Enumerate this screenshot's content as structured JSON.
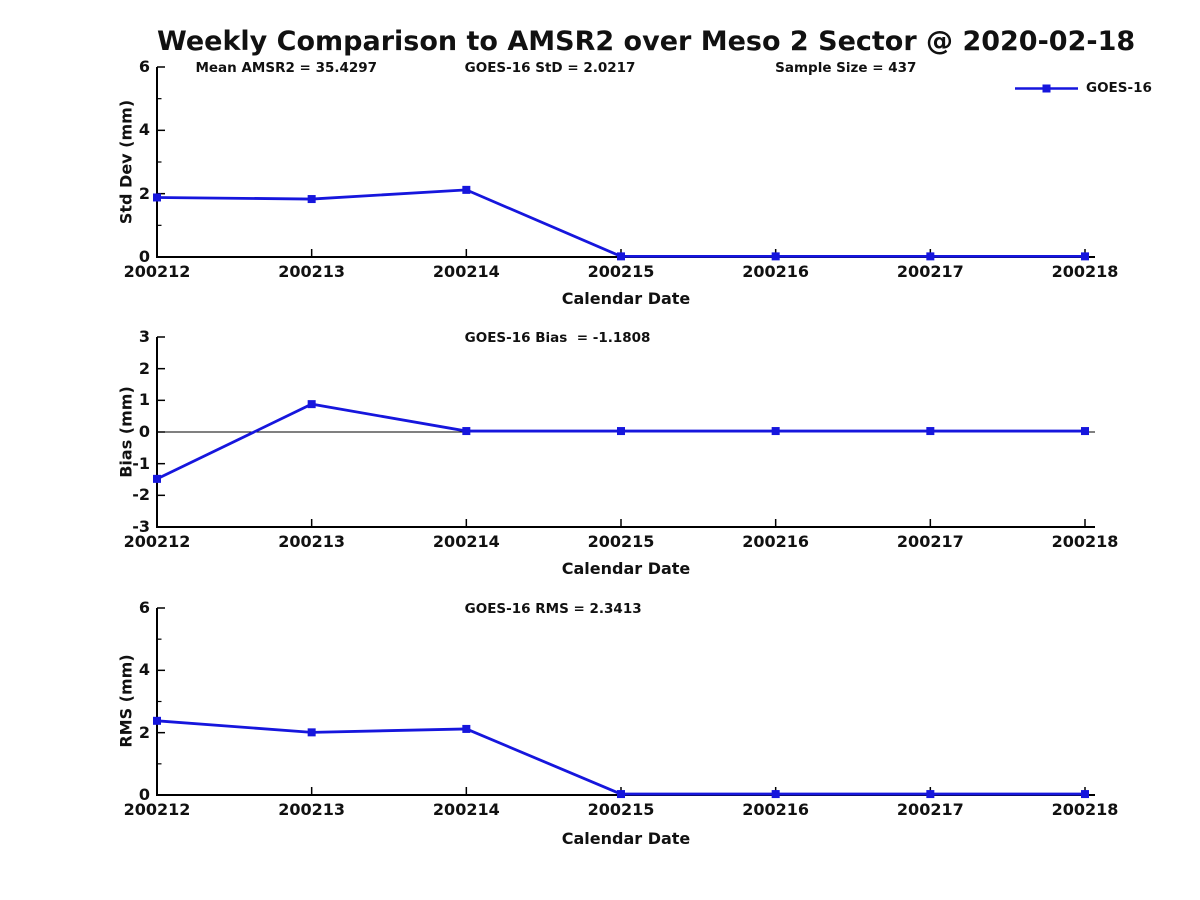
{
  "title": "Weekly Comparison to AMSR2 over Meso 2 Sector @ 2020-02-18",
  "legend": {
    "label": "GOES-16"
  },
  "colors": {
    "line": "#1616dd",
    "axis": "#000000",
    "text": "#111111",
    "background": "#ffffff"
  },
  "chart_data": [
    {
      "type": "line",
      "name": "std-dev",
      "ylabel": "Std Dev (mm)",
      "xlabel": "Calendar Date",
      "categories": [
        "200212",
        "200213",
        "200214",
        "200215",
        "200216",
        "200217",
        "200218"
      ],
      "series": [
        {
          "name": "GOES-16",
          "values": [
            1.88,
            1.83,
            2.12,
            0.02,
            0.02,
            0.02,
            0.02
          ]
        }
      ],
      "ylim": [
        0,
        6
      ],
      "yticks": [
        0,
        2,
        4,
        6
      ],
      "minor_yticks": [
        1,
        3,
        5
      ],
      "zero_line": false,
      "grid": false,
      "legend_position": "top-right-inside",
      "annotations": [
        {
          "text": "Mean AMSR2 = 35.4297",
          "fx": 0.041
        },
        {
          "text": "GOES-16 StD = 2.0217",
          "fx": 0.328
        },
        {
          "text": "Sample Size = 437",
          "fx": 0.659
        }
      ]
    },
    {
      "type": "line",
      "name": "bias",
      "ylabel": "Bias (mm)",
      "xlabel": "Calendar Date",
      "categories": [
        "200212",
        "200213",
        "200214",
        "200215",
        "200216",
        "200217",
        "200218"
      ],
      "series": [
        {
          "name": "GOES-16",
          "values": [
            -1.48,
            0.88,
            0.03,
            0.03,
            0.03,
            0.03,
            0.03
          ]
        }
      ],
      "ylim": [
        -3,
        3
      ],
      "yticks": [
        -3,
        -2,
        -1,
        0,
        1,
        2,
        3
      ],
      "minor_yticks": [],
      "zero_line": true,
      "grid": false,
      "legend_position": "none",
      "annotations": [
        {
          "text": "GOES-16 Bias  = -1.1808",
          "fx": 0.328
        }
      ]
    },
    {
      "type": "line",
      "name": "rms",
      "ylabel": "RMS (mm)",
      "xlabel": "Calendar Date",
      "categories": [
        "200212",
        "200213",
        "200214",
        "200215",
        "200216",
        "200217",
        "200218"
      ],
      "series": [
        {
          "name": "GOES-16",
          "values": [
            2.38,
            2.01,
            2.12,
            0.03,
            0.03,
            0.03,
            0.03
          ]
        }
      ],
      "ylim": [
        0,
        6
      ],
      "yticks": [
        0,
        2,
        4,
        6
      ],
      "minor_yticks": [
        1,
        3,
        5
      ],
      "zero_line": false,
      "grid": false,
      "legend_position": "none",
      "annotations": [
        {
          "text": "GOES-16 RMS = 2.3413",
          "fx": 0.328
        }
      ]
    }
  ]
}
